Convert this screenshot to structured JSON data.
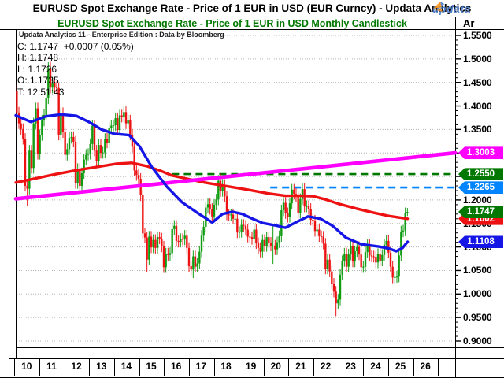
{
  "window": {
    "title": "EURUSD Spot Exchange Rate - Price of 1 EUR in USD (EUR Curncy) -  Updata Analytics",
    "logo_text": "updata"
  },
  "chart": {
    "title": "EURUSD Spot Exchange Rate - Price of 1 EUR in USD Monthly Candlestick",
    "watermark": "Updata Analytics 11 - Enterprise Edition : Data by Bloomberg",
    "axis_header": "Ar",
    "quote_lines": [
      "C: 1.1747  +0.0007 (0.05%)",
      "H: 1.1748",
      "L: 1.1726",
      "O: 1.1735",
      "T: 12:51:43"
    ]
  },
  "chart_data": {
    "type": "candlestick",
    "symbol": "EURUSD",
    "period": "Monthly",
    "y_tick_labels": [
      "1.5500",
      "1.5000",
      "1.4500",
      "1.4000",
      "1.3500",
      "1.3000",
      "1.2500",
      "1.2000",
      "1.1500",
      "1.1000",
      "1.0500",
      "1.0000",
      "0.9500",
      "0.9000"
    ],
    "x_year_labels": [
      "10",
      "11",
      "12",
      "13",
      "14",
      "15",
      "16",
      "17",
      "18",
      "19",
      "20",
      "21",
      "22",
      "23",
      "24",
      "25",
      "26"
    ],
    "colors": {
      "up_candle": "#0f9b0f",
      "down_candle": "#ee1111",
      "ma_short": "#1515e6",
      "ma_long": "#ee1111",
      "trendline": "#ff00ff",
      "dash_upper": "#007800",
      "dash_lower": "#0084ff",
      "grid": "#b4b4b4"
    },
    "monthly": {
      "start": "2010-01",
      "first_open": 1.433,
      "closes": [
        1.386,
        1.363,
        1.351,
        1.33,
        1.23,
        1.224,
        1.305,
        1.268,
        1.363,
        1.395,
        1.298,
        1.338,
        1.369,
        1.381,
        1.416,
        1.481,
        1.439,
        1.45,
        1.44,
        1.438,
        1.339,
        1.385,
        1.344,
        1.296,
        1.308,
        1.332,
        1.334,
        1.324,
        1.236,
        1.266,
        1.23,
        1.257,
        1.286,
        1.296,
        1.298,
        1.319,
        1.358,
        1.305,
        1.282,
        1.317,
        1.3,
        1.301,
        1.33,
        1.322,
        1.353,
        1.358,
        1.359,
        1.374,
        1.349,
        1.38,
        1.377,
        1.387,
        1.363,
        1.369,
        1.339,
        1.313,
        1.263,
        1.253,
        1.245,
        1.21,
        1.129,
        1.12,
        1.073,
        1.122,
        1.099,
        1.115,
        1.098,
        1.121,
        1.118,
        1.101,
        1.057,
        1.086,
        1.083,
        1.087,
        1.138,
        1.145,
        1.113,
        1.111,
        1.117,
        1.116,
        1.124,
        1.098,
        1.059,
        1.052,
        1.08,
        1.058,
        1.065,
        1.09,
        1.124,
        1.143,
        1.184,
        1.191,
        1.181,
        1.165,
        1.19,
        1.201,
        1.241,
        1.219,
        1.232,
        1.208,
        1.169,
        1.168,
        1.169,
        1.16,
        1.16,
        1.131,
        1.132,
        1.147,
        1.145,
        1.137,
        1.122,
        1.121,
        1.117,
        1.137,
        1.108,
        1.098,
        1.09,
        1.115,
        1.102,
        1.121,
        1.109,
        1.103,
        1.103,
        1.095,
        1.11,
        1.123,
        1.178,
        1.194,
        1.172,
        1.164,
        1.193,
        1.222,
        1.213,
        1.207,
        1.173,
        1.202,
        1.223,
        1.186,
        1.187,
        1.181,
        1.158,
        1.156,
        1.134,
        1.137,
        1.123,
        1.122,
        1.107,
        1.054,
        1.073,
        1.048,
        1.022,
        1.005,
        0.98,
        0.988,
        1.041,
        1.07,
        1.086,
        1.058,
        1.084,
        1.102,
        1.069,
        1.091,
        1.1,
        1.084,
        1.057,
        1.058,
        1.089,
        1.104,
        1.082,
        1.08,
        1.079,
        1.067,
        1.085,
        1.071,
        1.083,
        1.105,
        1.113,
        1.088,
        1.058,
        1.035,
        1.036,
        1.037,
        1.082,
        1.133,
        1.135,
        1.172,
        1.1747
      ],
      "extremes": {
        "5": {
          "l": 1.188
        },
        "16": {
          "h": 1.494
        },
        "52": {
          "h": 1.399
        },
        "62": {
          "l": 1.046
        },
        "84": {
          "l": 1.034
        },
        "97": {
          "h": 1.2555
        },
        "122": {
          "l": 1.064,
          "h": 1.149
        },
        "152": {
          "l": 0.953
        },
        "186": {
          "h": 1.183,
          "l": 1.166
        }
      }
    },
    "overlays": {
      "trendline": {
        "points": [
          [
            2010.0,
            1.2025
          ],
          [
            2027.44,
            1.3003
          ]
        ]
      },
      "dash_upper": {
        "level": 1.255,
        "from_year": 2016.2
      },
      "dash_lower": {
        "level": 1.2265,
        "from_year": 2020.1
      },
      "ma_long_points": [
        [
          2010.0,
          1.237
        ],
        [
          2010.8,
          1.246
        ],
        [
          2011.6,
          1.255
        ],
        [
          2012.5,
          1.264
        ],
        [
          2013.3,
          1.271
        ],
        [
          2014.0,
          1.277
        ],
        [
          2014.6,
          1.279
        ],
        [
          2015.2,
          1.272
        ],
        [
          2015.7,
          1.263
        ],
        [
          2016.2,
          1.252
        ],
        [
          2016.8,
          1.245
        ],
        [
          2017.5,
          1.237
        ],
        [
          2018.3,
          1.23
        ],
        [
          2019.2,
          1.222
        ],
        [
          2020.0,
          1.214
        ],
        [
          2020.7,
          1.209
        ],
        [
          2021.3,
          1.209
        ],
        [
          2021.8,
          1.208
        ],
        [
          2022.3,
          1.201
        ],
        [
          2022.8,
          1.192
        ],
        [
          2023.5,
          1.182
        ],
        [
          2024.2,
          1.173
        ],
        [
          2024.8,
          1.166
        ],
        [
          2025.3,
          1.162
        ],
        [
          2025.55,
          1.16
        ]
      ],
      "ma_short_points": [
        [
          2010.0,
          1.38
        ],
        [
          2010.6,
          1.366
        ],
        [
          2011.2,
          1.378
        ],
        [
          2011.8,
          1.382
        ],
        [
          2012.4,
          1.379
        ],
        [
          2012.9,
          1.366
        ],
        [
          2013.4,
          1.35
        ],
        [
          2013.9,
          1.341
        ],
        [
          2014.5,
          1.338
        ],
        [
          2014.9,
          1.315
        ],
        [
          2015.4,
          1.27
        ],
        [
          2016.0,
          1.228
        ],
        [
          2016.6,
          1.195
        ],
        [
          2017.2,
          1.173
        ],
        [
          2017.8,
          1.152
        ],
        [
          2018.2,
          1.17
        ],
        [
          2018.6,
          1.175
        ],
        [
          2019.0,
          1.17
        ],
        [
          2019.4,
          1.16
        ],
        [
          2019.8,
          1.151
        ],
        [
          2020.3,
          1.146
        ],
        [
          2020.7,
          1.141
        ],
        [
          2021.1,
          1.152
        ],
        [
          2021.6,
          1.165
        ],
        [
          2022.1,
          1.16
        ],
        [
          2022.6,
          1.144
        ],
        [
          2023.1,
          1.12
        ],
        [
          2023.7,
          1.106
        ],
        [
          2024.4,
          1.101
        ],
        [
          2024.8,
          1.097
        ],
        [
          2025.1,
          1.091
        ],
        [
          2025.35,
          1.098
        ],
        [
          2025.55,
          1.111
        ]
      ]
    },
    "price_badges": [
      {
        "text": "1.3003",
        "value": 1.3003,
        "color": "#ff00ff"
      },
      {
        "text": "1.2550",
        "value": 1.255,
        "color": "#007800"
      },
      {
        "text": "1.2265",
        "value": 1.2265,
        "color": "#0084ff"
      },
      {
        "text": "1.1602",
        "value": 1.1602,
        "color": "#ee1111"
      },
      {
        "text": "1.1747",
        "value": 1.1747,
        "color": "#007800"
      },
      {
        "text": "1.1108",
        "value": 1.1108,
        "color": "#1515e6"
      }
    ]
  }
}
